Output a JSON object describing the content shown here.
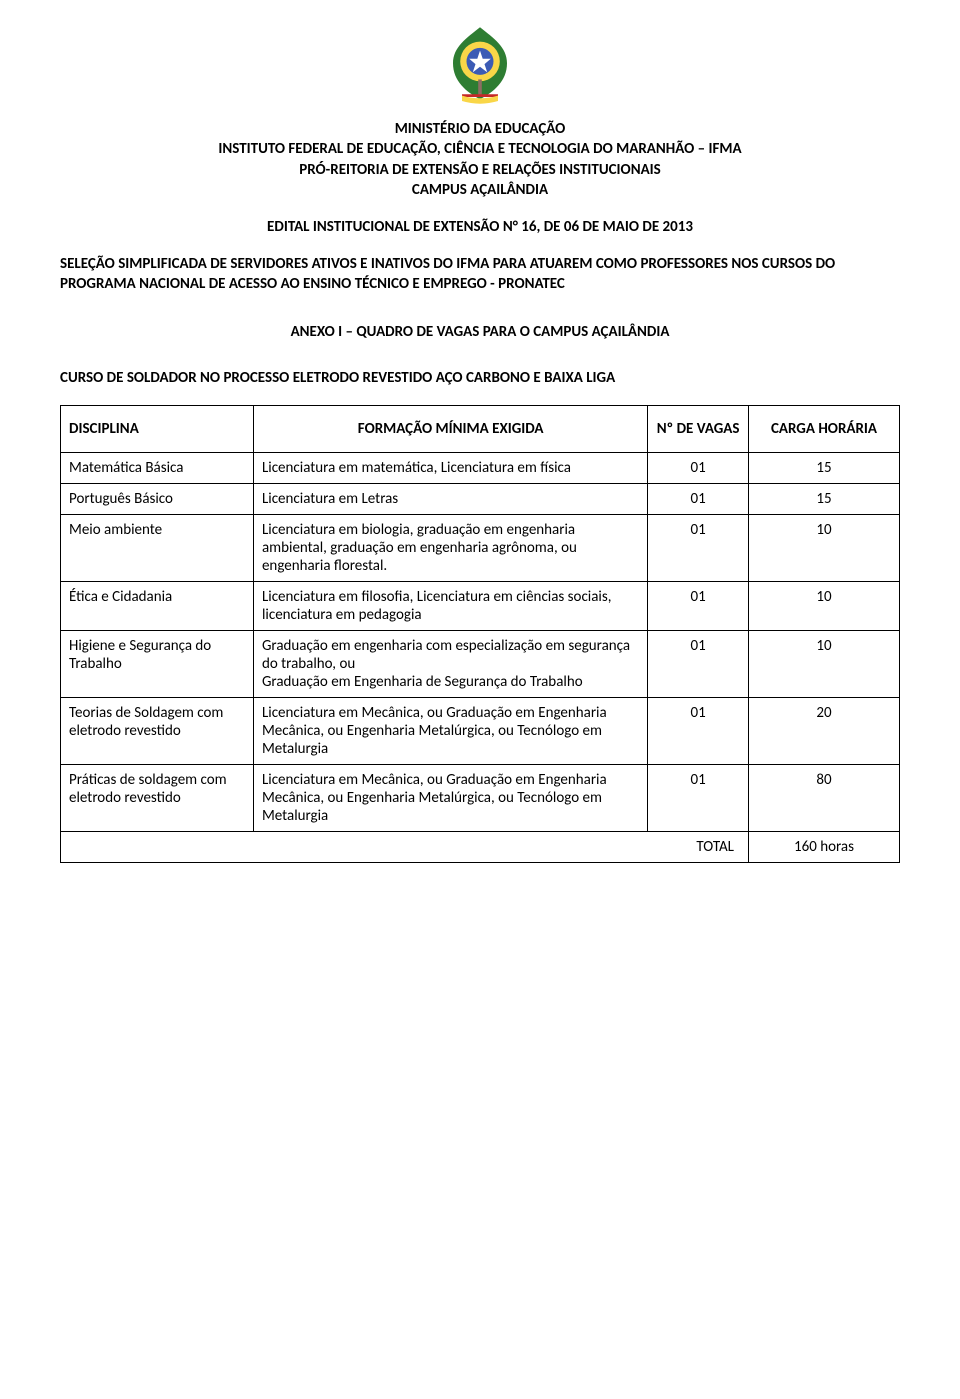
{
  "header": {
    "ministerio": "MINISTÉRIO DA EDUCAÇÃO",
    "instituto": "INSTITUTO FEDERAL DE EDUCAÇÃO, CIÊNCIA E TECNOLOGIA DO MARANHÃO – IFMA",
    "proreitoria": "PRÓ-REITORIA DE EXTENSÃO E RELAÇÕES INSTITUCIONAIS",
    "campus": "CAMPUS AÇAILÂNDIA"
  },
  "edital": "EDITAL INSTITUCIONAL DE EXTENSÃO N° 16, DE 06 DE MAIO DE 2013",
  "selecao": "SELEÇÃO SIMPLIFICADA DE SERVIDORES ATIVOS E INATIVOS DO IFMA PARA ATUAREM COMO PROFESSORES NOS CURSOS DO PROGRAMA NACIONAL DE ACESSO AO ENSINO TÉCNICO E EMPREGO - PRONATEC",
  "anexo": "ANEXO I – QUADRO DE VAGAS PARA O CAMPUS AÇAILÂNDIA",
  "curso": "CURSO DE SOLDADOR NO PROCESSO ELETRODO REVESTIDO AÇO CARBONO E BAIXA LIGA",
  "table": {
    "columns": {
      "disciplina": "DISCIPLINA",
      "formacao": "FORMAÇÃO MÍNIMA EXIGIDA",
      "vagas": "Nº DE VAGAS",
      "carga": "CARGA HORÁRIA"
    },
    "rows": [
      {
        "disciplina": "Matemática Básica",
        "formacao": "Licenciatura em matemática, Licenciatura em física",
        "vagas": "01",
        "carga": "15"
      },
      {
        "disciplina": "Português Básico",
        "formacao": "Licenciatura em Letras",
        "vagas": "01",
        "carga": "15"
      },
      {
        "disciplina": "Meio ambiente",
        "formacao": "Licenciatura em biologia, graduação em engenharia ambiental, graduação em engenharia agrônoma, ou engenharia florestal.",
        "vagas": "01",
        "carga": "10"
      },
      {
        "disciplina": "Ética e Cidadania",
        "formacao": "Licenciatura em filosofia, Licenciatura em ciências sociais, licenciatura em pedagogia",
        "vagas": "01",
        "carga": "10"
      },
      {
        "disciplina": "Higiene e Segurança do Trabalho",
        "formacao": "Graduação em engenharia com especialização em segurança do trabalho, ou\nGraduação em Engenharia de Segurança do Trabalho",
        "vagas": "01",
        "carga": "10"
      },
      {
        "disciplina": "Teorias de Soldagem com eletrodo revestido",
        "formacao": "Licenciatura em Mecânica, ou Graduação em Engenharia\nMecânica, ou Engenharia Metalúrgica, ou Tecnólogo em\nMetalurgia",
        "vagas": "01",
        "carga": "20"
      },
      {
        "disciplina": "Práticas de soldagem com eletrodo revestido",
        "formacao": "Licenciatura em Mecânica, ou Graduação em Engenharia\nMecânica, ou Engenharia Metalúrgica, ou Tecnólogo em\nMetalurgia",
        "vagas": "01",
        "carga": "80"
      }
    ],
    "total_label": "TOTAL",
    "total_value": "160 horas"
  },
  "emblem_colors": {
    "globe": "#3b5bb5",
    "leaves": "#2e7d32",
    "ribbon": "#f9d648",
    "star_ring": "#f9d648",
    "sword": "#c62828"
  }
}
